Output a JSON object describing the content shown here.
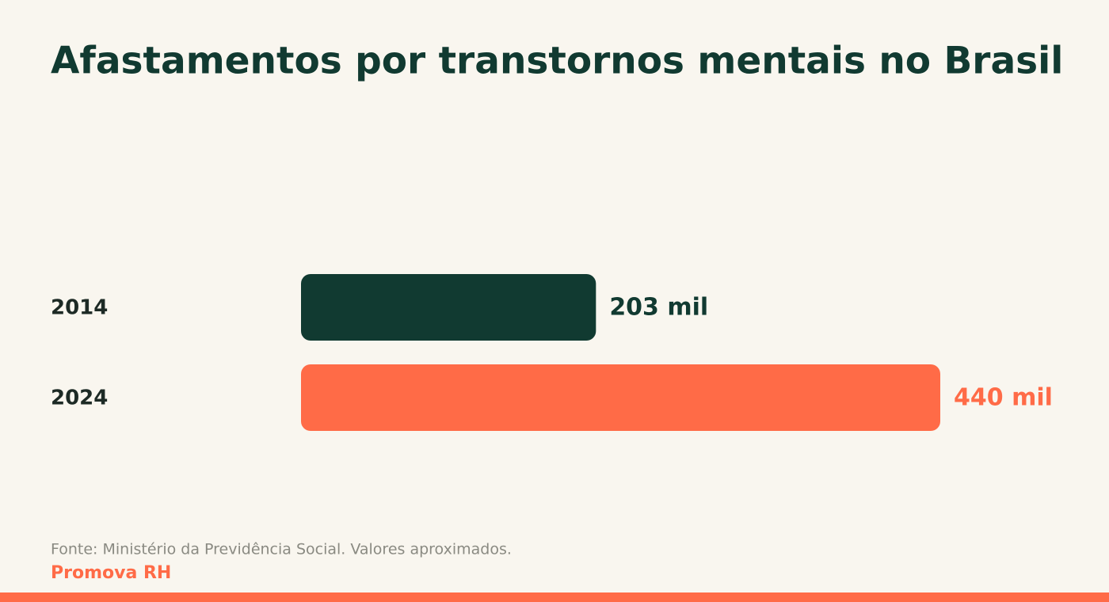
{
  "chart_data": {
    "type": "bar",
    "title": "Afastamentos por transtornos mentais no Brasil",
    "categories": [
      "2014",
      "2024"
    ],
    "values": [
      203,
      440
    ],
    "value_labels": [
      "203 mil",
      "440 mil"
    ],
    "colors": [
      "#113a31",
      "#ff6b47"
    ],
    "source": "Fonte: Ministério da Previdência Social. Valores aproximados.",
    "brand": "Promova RH"
  }
}
